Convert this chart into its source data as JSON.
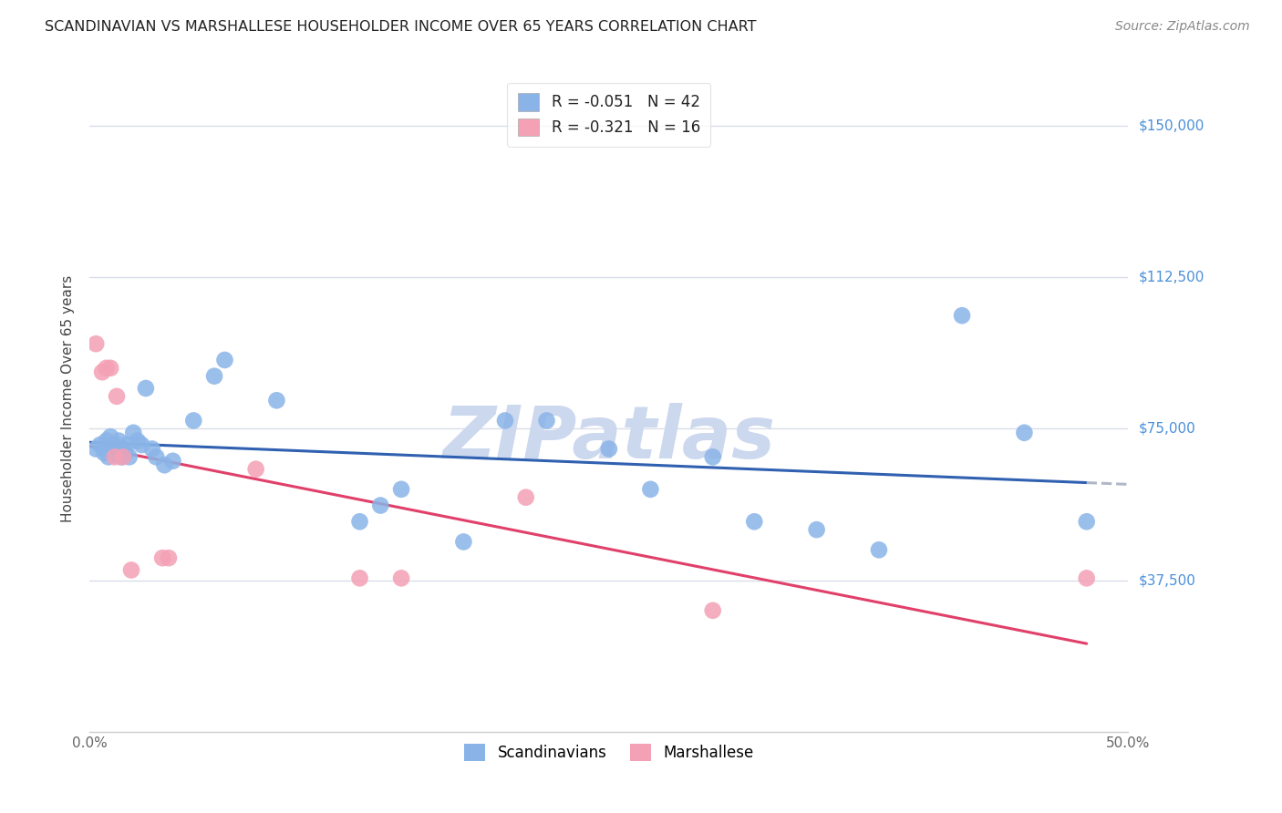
{
  "title": "SCANDINAVIAN VS MARSHALLESE HOUSEHOLDER INCOME OVER 65 YEARS CORRELATION CHART",
  "source": "Source: ZipAtlas.com",
  "ylabel": "Householder Income Over 65 years",
  "ytick_labels": [
    "$37,500",
    "$75,000",
    "$112,500",
    "$150,000"
  ],
  "ytick_values": [
    37500,
    75000,
    112500,
    150000
  ],
  "ylim": [
    0,
    165000
  ],
  "xlim": [
    0.0,
    0.5
  ],
  "legend_blue_r": "-0.051",
  "legend_blue_n": "42",
  "legend_pink_r": "-0.321",
  "legend_pink_n": "16",
  "blue_color": "#8ab4e8",
  "pink_color": "#f4a0b5",
  "line_blue": "#3060b0",
  "line_pink": "#e0406a",
  "line_dashed_color": "#b0b8c8",
  "background_color": "#ffffff",
  "grid_color": "#d8dde8",
  "watermark_color": "#ccd8ee",
  "title_color": "#222222",
  "source_color": "#888888",
  "ylabel_color": "#444444",
  "tick_color": "#666666",
  "right_label_color": "#4a90d9",
  "scandinavian_x": [
    0.003,
    0.005,
    0.007,
    0.008,
    0.009,
    0.01,
    0.011,
    0.012,
    0.013,
    0.014,
    0.015,
    0.016,
    0.017,
    0.018,
    0.019,
    0.021,
    0.023,
    0.025,
    0.027,
    0.03,
    0.032,
    0.036,
    0.04,
    0.05,
    0.06,
    0.065,
    0.09,
    0.13,
    0.14,
    0.15,
    0.18,
    0.2,
    0.22,
    0.25,
    0.27,
    0.3,
    0.32,
    0.35,
    0.38,
    0.42,
    0.45,
    0.48
  ],
  "scandinavian_y": [
    70000,
    71000,
    69000,
    72000,
    68000,
    73000,
    70000,
    71000,
    69000,
    72000,
    68000,
    70000,
    69000,
    71000,
    68000,
    74000,
    72000,
    71000,
    85000,
    70000,
    68000,
    66000,
    67000,
    77000,
    88000,
    92000,
    82000,
    52000,
    56000,
    60000,
    47000,
    77000,
    77000,
    70000,
    60000,
    68000,
    52000,
    50000,
    45000,
    103000,
    74000,
    52000
  ],
  "marshallese_x": [
    0.003,
    0.006,
    0.008,
    0.01,
    0.012,
    0.013,
    0.016,
    0.02,
    0.035,
    0.038,
    0.08,
    0.13,
    0.15,
    0.21,
    0.3,
    0.48
  ],
  "marshallese_y": [
    96000,
    89000,
    90000,
    90000,
    68000,
    83000,
    68000,
    40000,
    43000,
    43000,
    65000,
    38000,
    38000,
    58000,
    30000,
    38000
  ],
  "blue_trend_x0": 0.0,
  "blue_trend_x1": 0.48,
  "blue_trend_x_dash_start": 0.48,
  "blue_trend_x_dash_end": 0.5,
  "pink_trend_x0": 0.0,
  "pink_trend_x1": 0.48
}
